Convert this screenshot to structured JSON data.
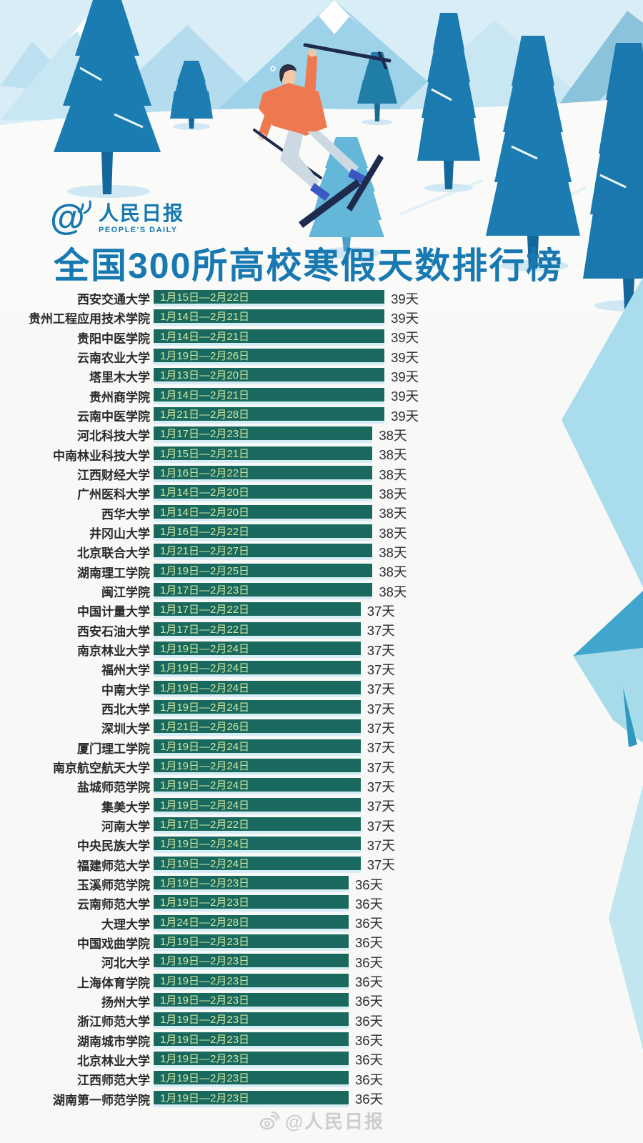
{
  "header": {
    "logo": {
      "at_symbol": "@",
      "cn": "人民日报",
      "en": "PEOPLE'S DAILY"
    },
    "title": "全国300所高校寒假天数排行榜"
  },
  "chart_data": {
    "type": "bar",
    "orientation": "horizontal",
    "title": "全国300所高校寒假天数排行榜",
    "value_unit": "天",
    "value_range": [
      36,
      39
    ],
    "bar_color": "#19695f",
    "bar_label_color": "#cfe5a0",
    "rows": [
      {
        "name": "西安交通大学",
        "date_range": "1月15日—2月22日",
        "days": 39
      },
      {
        "name": "贵州工程应用技术学院",
        "date_range": "1月14日—2月21日",
        "days": 39
      },
      {
        "name": "贵阳中医学院",
        "date_range": "1月14日—2月21日",
        "days": 39
      },
      {
        "name": "云南农业大学",
        "date_range": "1月19日—2月26日",
        "days": 39
      },
      {
        "name": "塔里木大学",
        "date_range": "1月13日—2月20日",
        "days": 39
      },
      {
        "name": "贵州商学院",
        "date_range": "1月14日—2月21日",
        "days": 39
      },
      {
        "name": "云南中医学院",
        "date_range": "1月21日—2月28日",
        "days": 39
      },
      {
        "name": "河北科技大学",
        "date_range": "1月17日—2月23日",
        "days": 38
      },
      {
        "name": "中南林业科技大学",
        "date_range": "1月15日—2月21日",
        "days": 38
      },
      {
        "name": "江西财经大学",
        "date_range": "1月16日—2月22日",
        "days": 38
      },
      {
        "name": "广州医科大学",
        "date_range": "1月14日—2月20日",
        "days": 38
      },
      {
        "name": "西华大学",
        "date_range": "1月14日—2月20日",
        "days": 38
      },
      {
        "name": "井冈山大学",
        "date_range": "1月16日—2月22日",
        "days": 38
      },
      {
        "name": "北京联合大学",
        "date_range": "1月21日—2月27日",
        "days": 38
      },
      {
        "name": "湖南理工学院",
        "date_range": "1月19日—2月25日",
        "days": 38
      },
      {
        "name": "闽江学院",
        "date_range": "1月17日—2月23日",
        "days": 38
      },
      {
        "name": "中国计量大学",
        "date_range": "1月17日—2月22日",
        "days": 37
      },
      {
        "name": "西安石油大学",
        "date_range": "1月17日—2月22日",
        "days": 37
      },
      {
        "name": "南京林业大学",
        "date_range": "1月19日—2月24日",
        "days": 37
      },
      {
        "name": "福州大学",
        "date_range": "1月19日—2月24日",
        "days": 37
      },
      {
        "name": "中南大学",
        "date_range": "1月19日—2月24日",
        "days": 37
      },
      {
        "name": "西北大学",
        "date_range": "1月19日—2月24日",
        "days": 37
      },
      {
        "name": "深圳大学",
        "date_range": "1月21日—2月26日",
        "days": 37
      },
      {
        "name": "厦门理工学院",
        "date_range": "1月19日—2月24日",
        "days": 37
      },
      {
        "name": "南京航空航天大学",
        "date_range": "1月19日—2月24日",
        "days": 37
      },
      {
        "name": "盐城师范学院",
        "date_range": "1月19日—2月24日",
        "days": 37
      },
      {
        "name": "集美大学",
        "date_range": "1月19日—2月24日",
        "days": 37
      },
      {
        "name": "河南大学",
        "date_range": "1月17日—2月22日",
        "days": 37
      },
      {
        "name": "中央民族大学",
        "date_range": "1月19日—2月24日",
        "days": 37
      },
      {
        "name": "福建师范大学",
        "date_range": "1月19日—2月24日",
        "days": 37
      },
      {
        "name": "玉溪师范学院",
        "date_range": "1月19日—2月23日",
        "days": 36
      },
      {
        "name": "云南师范大学",
        "date_range": "1月19日—2月23日",
        "days": 36
      },
      {
        "name": "大理大学",
        "date_range": "1月24日—2月28日",
        "days": 36
      },
      {
        "name": "中国戏曲学院",
        "date_range": "1月19日—2月23日",
        "days": 36
      },
      {
        "name": "河北大学",
        "date_range": "1月19日—2月23日",
        "days": 36
      },
      {
        "name": "上海体育学院",
        "date_range": "1月19日—2月23日",
        "days": 36
      },
      {
        "name": "扬州大学",
        "date_range": "1月19日—2月23日",
        "days": 36
      },
      {
        "name": "浙江师范大学",
        "date_range": "1月19日—2月23日",
        "days": 36
      },
      {
        "name": "湖南城市学院",
        "date_range": "1月19日—2月23日",
        "days": 36
      },
      {
        "name": "北京林业大学",
        "date_range": "1月19日—2月23日",
        "days": 36
      },
      {
        "name": "江西师范大学",
        "date_range": "1月19日—2月23日",
        "days": 36
      },
      {
        "name": "湖南第一师范学院",
        "date_range": "1月19日—2月23日",
        "days": 36
      }
    ]
  },
  "footer": {
    "watermark": "@人民日报"
  },
  "colors": {
    "title_blue": "#1879b2",
    "logo_blue": "#1778b0",
    "bar_teal": "#19695f",
    "bar_date_text": "#cfe5a0",
    "bar_gap_stripe": "#d6edf5",
    "sky": "#d9edf6",
    "tree_blue": "#1b7cb2",
    "light_tree_blue": "#64b7d8",
    "sweater_orange": "#ee7950",
    "pants_gray_blue": "#ccd8e2",
    "boots_blue": "#3c57c4",
    "ski_navy": "#1e2b4e",
    "ice_light_blue": "#a9dcec",
    "ice_mid_blue": "#41a6cd",
    "watermark_gray": "#cdcdcd"
  }
}
